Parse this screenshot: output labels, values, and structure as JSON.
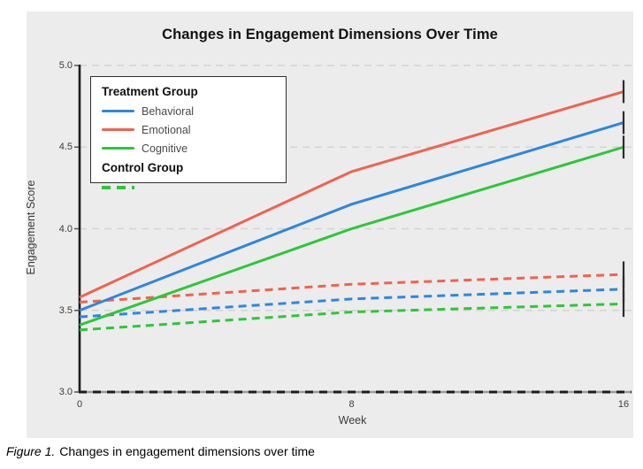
{
  "caption": {
    "prefix": "Figure 1.",
    "text": "Changes in engagement dimensions over time"
  },
  "chart_data": {
    "type": "line",
    "title": "Changes in Engagement Dimensions Over Time",
    "xlabel": "Week",
    "ylabel": "Engagement Score",
    "xlim": [
      0,
      16
    ],
    "ylim": [
      3.0,
      5.0
    ],
    "x": [
      0,
      8,
      16
    ],
    "xtick_labels": [
      "0",
      "8",
      "16"
    ],
    "yticks": [
      3.0,
      3.5,
      4.0,
      4.5,
      5.0
    ],
    "ytick_labels": [
      "3.0",
      "3.5",
      "4.0",
      "4.5",
      "5.0"
    ],
    "grid": "horizontal dashed gridlines at 3.5, 4.0, 4.5, 5.0; dark dashed baseline at 3.0",
    "legend_position": "upper-left",
    "colors": {
      "behavioral": "#2E86DE",
      "emotional": "#EF6351",
      "cognitive": "#2EC639",
      "error_bar": "#2d2d2d",
      "panel_background": "#ECECEC",
      "gridline": "#d4d4d4",
      "axis": "#1c1c1c"
    },
    "series": [
      {
        "group": "Control Group",
        "name": "Behavioral (Control)",
        "color": "#2E86DE",
        "style": "dashed",
        "values": [
          3.46,
          3.57,
          3.63
        ],
        "error_last": 0.08
      },
      {
        "group": "Control Group",
        "name": "Emotional (Control)",
        "color": "#EF6351",
        "style": "dashed",
        "values": [
          3.55,
          3.66,
          3.72
        ],
        "error_last": 0.08
      },
      {
        "group": "Control Group",
        "name": "Cognitive (Control)",
        "color": "#2EC639",
        "style": "dashed",
        "values": [
          3.38,
          3.49,
          3.54
        ],
        "error_last": 0.08
      },
      {
        "group": "Treatment Group",
        "name": "Behavioral",
        "color": "#2E86DE",
        "style": "solid",
        "values": [
          3.5,
          4.15,
          4.65
        ],
        "error_last": 0.07
      },
      {
        "group": "Treatment Group",
        "name": "Emotional",
        "color": "#EF6351",
        "style": "solid",
        "values": [
          3.58,
          4.35,
          4.84
        ],
        "error_last": 0.07
      },
      {
        "group": "Treatment Group",
        "name": "Cognitive",
        "color": "#2EC639",
        "style": "solid",
        "values": [
          3.41,
          4.0,
          4.5
        ],
        "error_last": 0.07
      }
    ],
    "legend": {
      "treatment_title": "Treatment Group",
      "items": [
        {
          "label": "Behavioral",
          "color": "#2E86DE"
        },
        {
          "label": "Emotional",
          "color": "#EF6351"
        },
        {
          "label": "Cognitive",
          "color": "#2EC639"
        }
      ],
      "control_title": "Control Group",
      "control_sample_color": "#2EC639",
      "control_sample_style": "dashed"
    }
  }
}
